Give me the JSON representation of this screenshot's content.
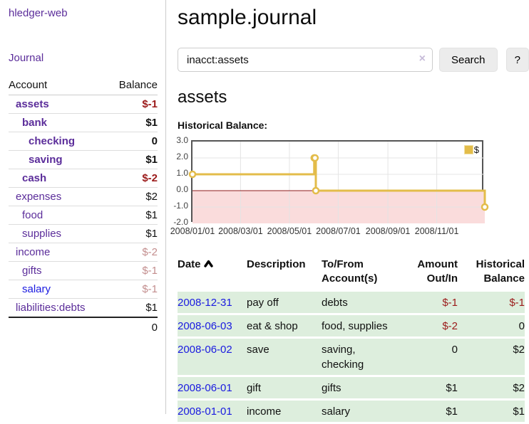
{
  "sidebar": {
    "app_title": "hledger-web",
    "journal_label": "Journal",
    "accounts_header": {
      "account": "Account",
      "balance": "Balance"
    },
    "accounts": [
      {
        "name": "assets",
        "balance": "$-1"
      },
      {
        "name": "bank",
        "balance": "$1"
      },
      {
        "name": "checking",
        "balance": "0"
      },
      {
        "name": "saving",
        "balance": "$1"
      },
      {
        "name": "cash",
        "balance": "$-2"
      },
      {
        "name": "expenses",
        "balance": "$2"
      },
      {
        "name": "food",
        "balance": "$1"
      },
      {
        "name": "supplies",
        "balance": "$1"
      },
      {
        "name": "income",
        "balance": "$-2"
      },
      {
        "name": "gifts",
        "balance": "$-1"
      },
      {
        "name": "salary",
        "balance": "$-1"
      },
      {
        "name": "liabilities:debts",
        "balance": "$1"
      }
    ],
    "total_balance": "0"
  },
  "header": {
    "title": "sample.journal"
  },
  "search": {
    "value": "inacct:assets",
    "clear_icon": "×",
    "button_label": "Search",
    "help_label": "?"
  },
  "account_page": {
    "heading": "assets",
    "chart_title": "Historical Balance:"
  },
  "chart_data": {
    "type": "line",
    "line_style": "step",
    "title": "Historical Balance",
    "legend": {
      "label": "$",
      "position": "top-right"
    },
    "series": [
      {
        "name": "$",
        "color": "#e3bc4a",
        "points": [
          {
            "date": "2008-01-01",
            "value": 1
          },
          {
            "date": "2008-06-01",
            "value": 2
          },
          {
            "date": "2008-06-02",
            "value": 2
          },
          {
            "date": "2008-06-03",
            "value": 0
          },
          {
            "date": "2008-12-31",
            "value": -1
          }
        ]
      }
    ],
    "x_range": [
      "2008-01-01",
      "2008-12-31"
    ],
    "ylim": [
      -2,
      3
    ],
    "y_ticks": [
      3,
      2,
      1,
      0,
      -1,
      -2
    ],
    "x_ticks": [
      "2008/01/01",
      "2008/03/01",
      "2008/05/01",
      "2008/07/01",
      "2008/09/01",
      "2008/11/01"
    ],
    "grid": true,
    "colors": {
      "grid": "#e4e4e4",
      "negative_region_fill": "#fadcdc",
      "zero_line": "#8f1d1d",
      "border": "#555555"
    }
  },
  "register": {
    "headers": {
      "date": "Date",
      "sort_direction": "ascending",
      "description": "Description",
      "accounts": "To/From Account(s)",
      "amount": "Amount Out/In",
      "balance": "Historical Balance"
    },
    "rows": [
      {
        "date": "2008-12-31",
        "description": "pay off",
        "accounts": "debts",
        "amount": "$-1",
        "balance": "$-1"
      },
      {
        "date": "2008-06-03",
        "description": "eat & shop",
        "accounts": "food, supplies",
        "amount": "$-2",
        "balance": "0"
      },
      {
        "date": "2008-06-02",
        "description": "save",
        "accounts": "saving, checking",
        "amount": "0",
        "balance": "$2"
      },
      {
        "date": "2008-06-01",
        "description": "gift",
        "accounts": "gifts",
        "amount": "$1",
        "balance": "$2"
      },
      {
        "date": "2008-01-01",
        "description": "income",
        "accounts": "salary",
        "amount": "$1",
        "balance": "$1"
      }
    ]
  },
  "colors": {
    "link_visited": "#5b2d9a",
    "link_unvisited": "#1a1ae0",
    "negative_strong": "#9b1a1a",
    "negative_faded": "#c38e8e",
    "row_highlight_green": "#ddeedd",
    "series_gold": "#e3bc4a"
  }
}
